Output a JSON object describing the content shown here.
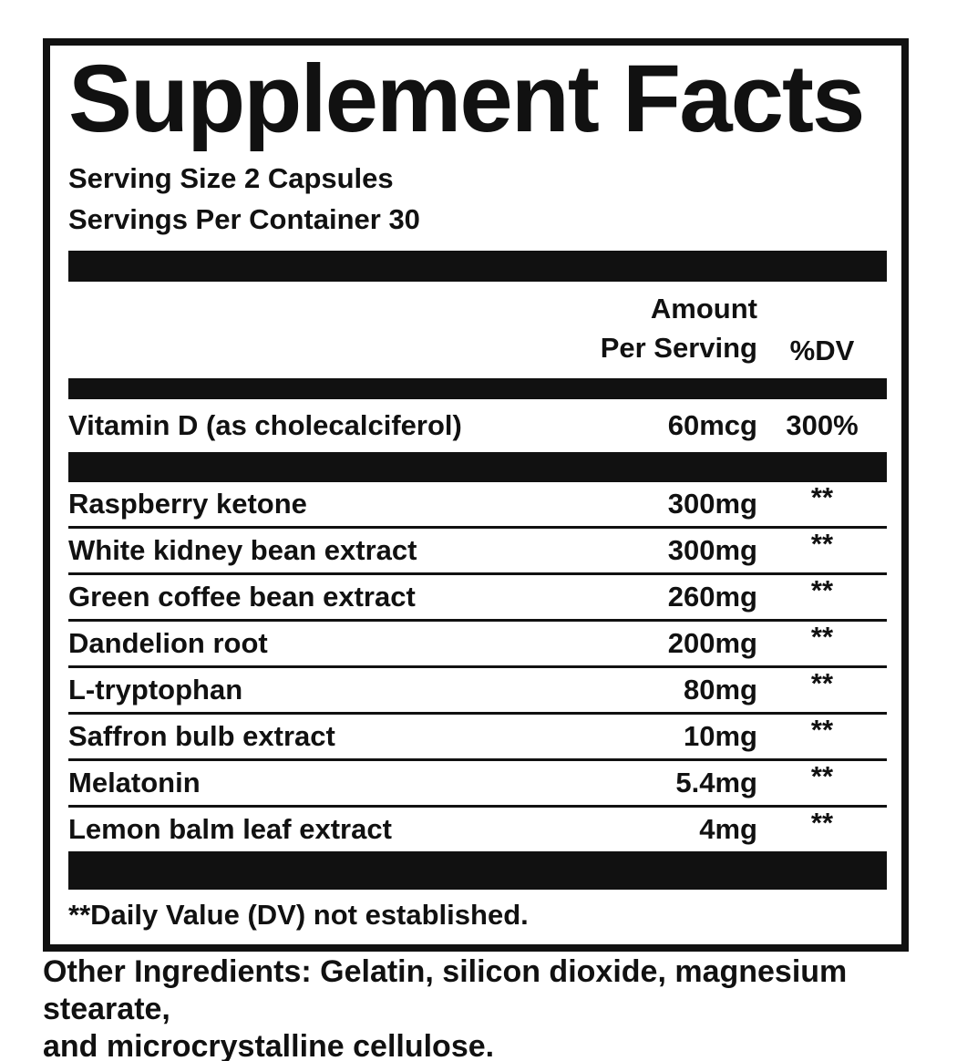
{
  "label": {
    "title": "Supplement Facts",
    "serving_size": "Serving Size 2 Capsules",
    "servings_per_container": "Servings Per Container 30",
    "columns": {
      "amount_line1": "Amount",
      "amount_line2": "Per Serving",
      "dv": "%DV"
    },
    "vitamin_row": {
      "name": "Vitamin D (as cholecalciferol)",
      "amount": "60mcg",
      "dv": "300%"
    },
    "rows": [
      {
        "name": "Raspberry ketone",
        "amount": "300mg",
        "dv": "**"
      },
      {
        "name": "White kidney bean extract",
        "amount": "300mg",
        "dv": "**"
      },
      {
        "name": "Green coffee bean extract",
        "amount": "260mg",
        "dv": "**"
      },
      {
        "name": "Dandelion root",
        "amount": "200mg",
        "dv": "**"
      },
      {
        "name": "L-tryptophan",
        "amount": "80mg",
        "dv": "**"
      },
      {
        "name": "Saffron bulb extract",
        "amount": "10mg",
        "dv": "**"
      },
      {
        "name": "Melatonin",
        "amount": "5.4mg",
        "dv": "**"
      },
      {
        "name": "Lemon balm leaf extract",
        "amount": "4mg",
        "dv": "**"
      }
    ],
    "footnote": "**Daily Value (DV) not established.",
    "colors": {
      "ink": "#111111",
      "background": "#ffffff"
    }
  },
  "other_ingredients": {
    "lines": [
      "Other Ingredients: Gelatin, silicon dioxide, magnesium stearate,",
      "and microcrystalline cellulose."
    ]
  }
}
